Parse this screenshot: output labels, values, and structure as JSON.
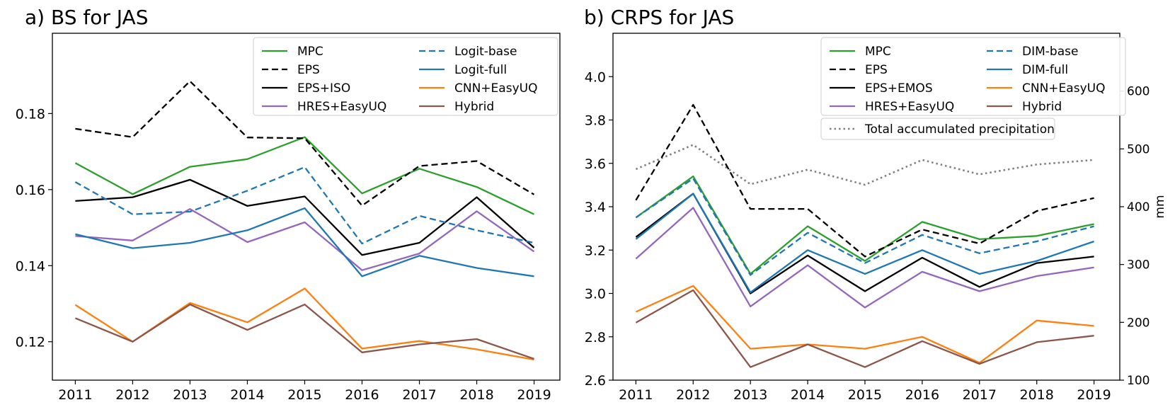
{
  "colors": {
    "MPC": "#2ca02c",
    "EPS": "#000000",
    "POST": "#000000",
    "HRES": "#9467bd",
    "BASE": "#1f77b4",
    "FULL": "#1f77b4",
    "CNN": "#ff7f0e",
    "HYBRID": "#8c564b",
    "PRECIP": "#7f7f7f"
  },
  "chart_data": [
    {
      "type": "line",
      "title": "a) BS for JAS",
      "xlabel": "",
      "ylabel": "",
      "x": [
        2011,
        2012,
        2013,
        2014,
        2015,
        2016,
        2017,
        2018,
        2019
      ],
      "xlim": [
        2010.6,
        2019.45
      ],
      "ylim": [
        0.1099,
        0.2011
      ],
      "yticks": [
        0.12,
        0.14,
        0.16,
        0.18
      ],
      "ytick_labels": [
        "0.12",
        "0.14",
        "0.16",
        "0.18"
      ],
      "legend_location": "top-right",
      "series": [
        {
          "key": "MPC",
          "name": "MPC",
          "style": "solid",
          "values": [
            0.167,
            0.1588,
            0.166,
            0.168,
            0.1738,
            0.159,
            0.1655,
            0.1607,
            0.1535
          ]
        },
        {
          "key": "EPS",
          "name": "EPS",
          "style": "dashed",
          "values": [
            0.176,
            0.1738,
            0.1885,
            0.1737,
            0.1735,
            0.1558,
            0.1662,
            0.1675,
            0.1587
          ]
        },
        {
          "key": "POST",
          "name": "EPS+ISO",
          "style": "solid",
          "values": [
            0.157,
            0.158,
            0.1626,
            0.1557,
            0.1582,
            0.1428,
            0.146,
            0.158,
            0.1447
          ]
        },
        {
          "key": "HRES",
          "name": "HRES+EasyUQ",
          "style": "solid",
          "values": [
            0.1478,
            0.1466,
            0.1549,
            0.1462,
            0.1514,
            0.1388,
            0.1432,
            0.1543,
            0.1437
          ]
        },
        {
          "key": "BASE",
          "name": "Logit-base",
          "style": "dashed",
          "values": [
            0.162,
            0.1535,
            0.1542,
            0.1597,
            0.1659,
            0.1458,
            0.1531,
            0.1493,
            0.146
          ]
        },
        {
          "key": "FULL",
          "name": "Logit-full",
          "style": "solid",
          "values": [
            0.1483,
            0.1446,
            0.146,
            0.1493,
            0.1551,
            0.1372,
            0.1426,
            0.1394,
            0.1372
          ]
        },
        {
          "key": "CNN",
          "name": "CNN+EasyUQ",
          "style": "solid",
          "values": [
            0.1297,
            0.12,
            0.1302,
            0.1251,
            0.134,
            0.1182,
            0.1202,
            0.118,
            0.1153
          ]
        },
        {
          "key": "HYBRID",
          "name": "Hybrid",
          "style": "solid",
          "values": [
            0.1262,
            0.12,
            0.1298,
            0.1231,
            0.1298,
            0.1172,
            0.1193,
            0.1207,
            0.1155
          ]
        }
      ],
      "legend": [
        [
          "MPC",
          "EPS",
          "POST",
          "HRES"
        ],
        [
          "BASE",
          "FULL",
          "CNN",
          "HYBRID"
        ]
      ]
    },
    {
      "type": "line",
      "title": "b) CRPS for JAS",
      "xlabel": "",
      "ylabel": "",
      "y2label": "mm",
      "x": [
        2011,
        2012,
        2013,
        2014,
        2015,
        2016,
        2017,
        2018,
        2019
      ],
      "xlim": [
        2010.6,
        2019.45
      ],
      "ylim": [
        2.6,
        4.2
      ],
      "yticks": [
        2.6,
        2.8,
        3.0,
        3.2,
        3.4,
        3.6,
        3.8,
        4.0
      ],
      "ytick_labels": [
        "2.6",
        "2.8",
        "3.0",
        "3.2",
        "3.4",
        "3.6",
        "3.8",
        "4.0"
      ],
      "y2lim": [
        100,
        700
      ],
      "y2ticks": [
        100,
        200,
        300,
        400,
        500,
        600
      ],
      "y2tick_labels": [
        "100",
        "200",
        "300",
        "400",
        "500",
        "600"
      ],
      "legend_location": "top-right",
      "series": [
        {
          "key": "MPC",
          "name": "MPC",
          "style": "solid",
          "values": [
            3.35,
            3.54,
            3.09,
            3.31,
            3.15,
            3.33,
            3.25,
            3.265,
            3.32
          ]
        },
        {
          "key": "EPS",
          "name": "EPS",
          "style": "dashed",
          "values": [
            3.43,
            3.87,
            3.39,
            3.39,
            3.17,
            3.295,
            3.23,
            3.38,
            3.44
          ]
        },
        {
          "key": "POST",
          "name": "EPS+EMOS",
          "style": "solid",
          "values": [
            3.26,
            3.46,
            3.0,
            3.175,
            3.01,
            3.165,
            3.03,
            3.14,
            3.17
          ]
        },
        {
          "key": "HRES",
          "name": "HRES+EasyUQ",
          "style": "solid",
          "values": [
            3.16,
            3.395,
            2.94,
            3.13,
            2.935,
            3.1,
            3.01,
            3.08,
            3.12
          ]
        },
        {
          "key": "BASE",
          "name": "DIM-base",
          "style": "dashed",
          "values": [
            3.35,
            3.53,
            3.085,
            3.28,
            3.14,
            3.27,
            3.185,
            3.24,
            3.31
          ]
        },
        {
          "key": "FULL",
          "name": "DIM-full",
          "style": "solid",
          "values": [
            3.25,
            3.46,
            3.005,
            3.2,
            3.09,
            3.2,
            3.09,
            3.15,
            3.24
          ]
        },
        {
          "key": "CNN",
          "name": "CNN+EasyUQ",
          "style": "solid",
          "values": [
            2.915,
            3.035,
            2.745,
            2.765,
            2.745,
            2.8,
            2.68,
            2.875,
            2.85
          ]
        },
        {
          "key": "HYBRID",
          "name": "Hybrid",
          "style": "solid",
          "values": [
            2.865,
            3.015,
            2.66,
            2.765,
            2.66,
            2.78,
            2.675,
            2.775,
            2.805
          ]
        },
        {
          "key": "PRECIP",
          "name": "Total accumulated precipitation",
          "style": "dotted",
          "axis": "right",
          "values": [
            465,
            507,
            439,
            464,
            438,
            481,
            456,
            473,
            481
          ]
        }
      ],
      "legend": [
        [
          "MPC",
          "EPS",
          "POST",
          "HRES"
        ],
        [
          "BASE",
          "FULL",
          "CNN",
          "HYBRID"
        ]
      ],
      "legend_extra": "PRECIP"
    }
  ]
}
